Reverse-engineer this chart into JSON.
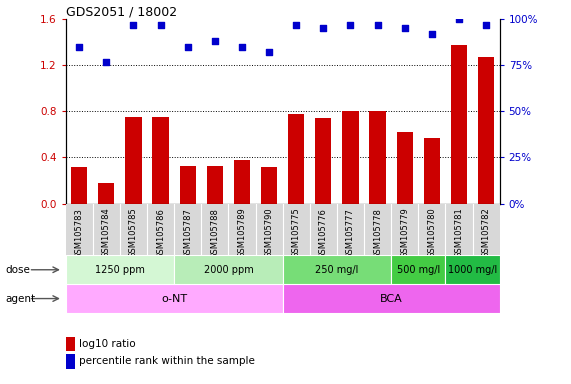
{
  "title": "GDS2051 / 18002",
  "samples": [
    "GSM105783",
    "GSM105784",
    "GSM105785",
    "GSM105786",
    "GSM105787",
    "GSM105788",
    "GSM105789",
    "GSM105790",
    "GSM105775",
    "GSM105776",
    "GSM105777",
    "GSM105778",
    "GSM105779",
    "GSM105780",
    "GSM105781",
    "GSM105782"
  ],
  "log10_ratio": [
    0.32,
    0.18,
    0.75,
    0.75,
    0.33,
    0.33,
    0.38,
    0.32,
    0.78,
    0.74,
    0.8,
    0.8,
    0.62,
    0.57,
    1.38,
    1.27
  ],
  "pct_rank": [
    85,
    77,
    97,
    97,
    85,
    88,
    85,
    82,
    97,
    95,
    97,
    97,
    95,
    92,
    100,
    97
  ],
  "bar_color": "#cc0000",
  "dot_color": "#0000cc",
  "ylim_left": [
    0,
    1.6
  ],
  "ylim_right": [
    0,
    100
  ],
  "yticks_left": [
    0,
    0.4,
    0.8,
    1.2,
    1.6
  ],
  "yticks_right": [
    0,
    25,
    50,
    75,
    100
  ],
  "dose_groups": [
    {
      "label": "1250 ppm",
      "start": 0,
      "end": 4,
      "color": "#d4f7d4"
    },
    {
      "label": "2000 ppm",
      "start": 4,
      "end": 8,
      "color": "#b8edb8"
    },
    {
      "label": "250 mg/l",
      "start": 8,
      "end": 12,
      "color": "#77dd77"
    },
    {
      "label": "500 mg/l",
      "start": 12,
      "end": 14,
      "color": "#44cc44"
    },
    {
      "label": "1000 mg/l",
      "start": 14,
      "end": 16,
      "color": "#22bb44"
    }
  ],
  "agent_groups": [
    {
      "label": "o-NT",
      "start": 0,
      "end": 8,
      "color": "#ffaaff"
    },
    {
      "label": "BCA",
      "start": 8,
      "end": 16,
      "color": "#ee66ee"
    }
  ],
  "dose_label": "dose",
  "agent_label": "agent",
  "xlabels_bg": "#d8d8d8",
  "grid_color": "#888888",
  "tick_color_left": "#cc0000",
  "tick_color_right": "#0000cc"
}
